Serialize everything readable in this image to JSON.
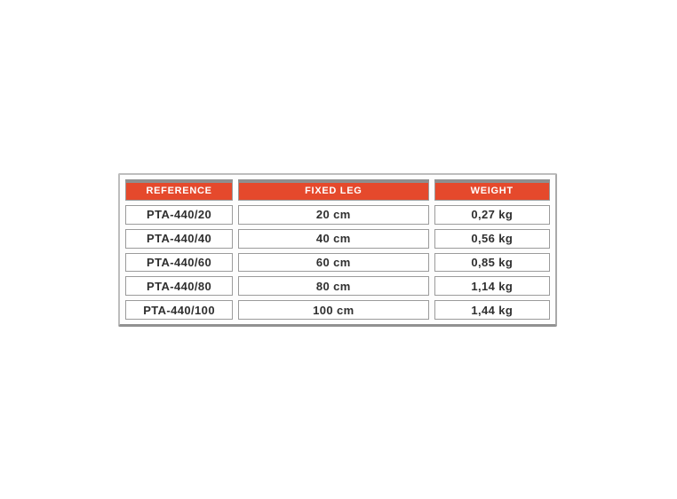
{
  "chart_data": {
    "type": "table",
    "columns": [
      "REFERENCE",
      "FIXED LEG",
      "WEIGHT"
    ],
    "rows": [
      [
        "PTA-440/20",
        "20 cm",
        "0,27 kg"
      ],
      [
        "PTA-440/40",
        "40 cm",
        "0,56 kg"
      ],
      [
        "PTA-440/60",
        "60 cm",
        "0,85 kg"
      ],
      [
        "PTA-440/80",
        "80 cm",
        "1,14 kg"
      ],
      [
        "PTA-440/100",
        "100 cm",
        "1,44 kg"
      ]
    ]
  },
  "colors": {
    "header_bg": "#e5492c",
    "header_text": "#ffffff",
    "header_top_strip": "#8e8e8e",
    "cell_bg": "#ffffff",
    "cell_text": "#2f2f2f",
    "cell_border": "#9b9b9b",
    "frame_border": "#bdbdbd",
    "frame_border_right": "#a9a9a9",
    "frame_border_bottom": "#919191"
  }
}
